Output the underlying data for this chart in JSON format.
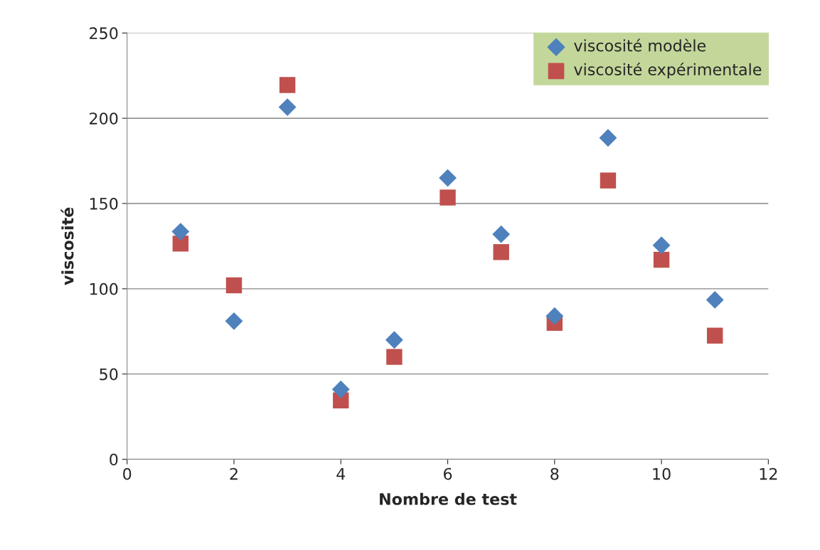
{
  "chart_data": {
    "type": "scatter",
    "xlabel": "Nombre de test",
    "ylabel": "viscosité",
    "xlim": [
      0,
      12
    ],
    "xticks": [
      0,
      2,
      4,
      6,
      8,
      10,
      12
    ],
    "ylim": [
      0,
      250
    ],
    "yticks": [
      0,
      50,
      100,
      150,
      200,
      250
    ],
    "grid": "y",
    "legend": "top right",
    "series": [
      {
        "name": "viscosité modèle",
        "color": "#4f81bd",
        "marker": "diamond",
        "x": [
          1,
          2,
          3,
          4,
          5,
          6,
          7,
          8,
          9,
          10,
          11
        ],
        "values": [
          133.5,
          81,
          206.5,
          41,
          70,
          165,
          132,
          84,
          188.5,
          125.5,
          93.5
        ]
      },
      {
        "name": "viscosité expérimentale",
        "color": "#c0504d",
        "marker": "square",
        "x": [
          1,
          2,
          3,
          4,
          5,
          6,
          7,
          8,
          9,
          10,
          11
        ],
        "values": [
          126.5,
          102,
          219.5,
          34.5,
          60,
          153.5,
          121.5,
          80,
          163.5,
          117,
          72.5
        ]
      }
    ]
  }
}
